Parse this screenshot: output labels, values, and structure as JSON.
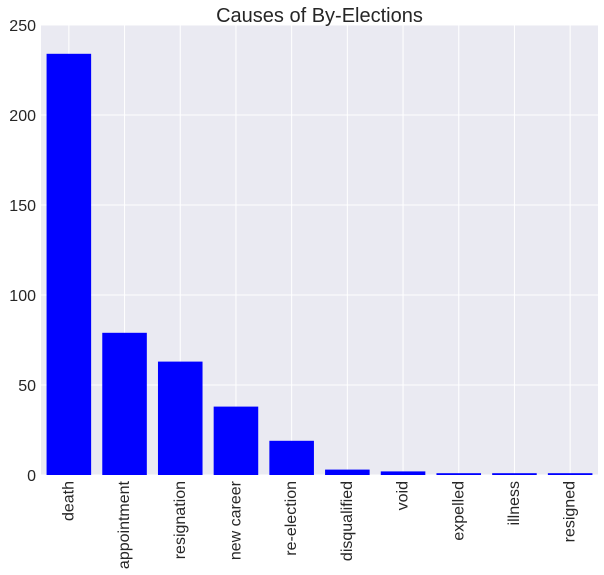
{
  "chart_data": {
    "type": "bar",
    "title": "Causes of By-Elections",
    "xlabel": "",
    "ylabel": "",
    "categories": [
      "death",
      "appointment",
      "resignation",
      "new career",
      "re-election",
      "disqualified",
      "void",
      "expelled",
      "illness",
      "resigned"
    ],
    "values": [
      234,
      79,
      63,
      38,
      19,
      3,
      2,
      1,
      1,
      1
    ],
    "ylim": [
      0,
      250
    ],
    "yticks": [
      0,
      50,
      100,
      150,
      200,
      250
    ],
    "grid": true,
    "legend": "none",
    "colors": {
      "bar": "#0000ff",
      "plot_background": "#eaeaf2",
      "grid": "#ffffff",
      "text": "#262626"
    }
  }
}
